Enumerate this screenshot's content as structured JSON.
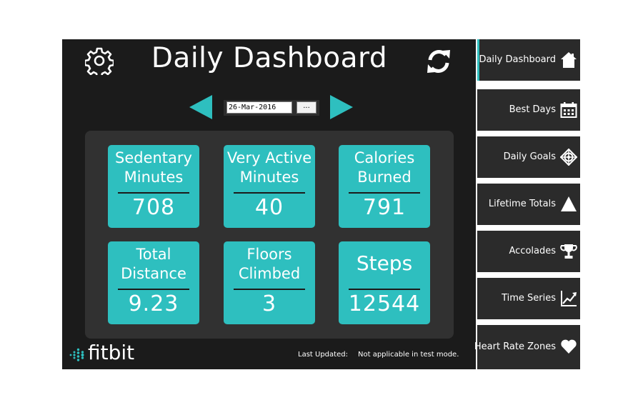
{
  "header": {
    "title": "Daily Dashboard",
    "settings_icon": "gear-icon",
    "refresh_icon": "refresh-icon"
  },
  "date_picker": {
    "value": "26-Mar-2016",
    "button_label": "..."
  },
  "tiles": [
    {
      "label": "Sedentary Minutes",
      "value": "708"
    },
    {
      "label": "Very Active Minutes",
      "value": "40"
    },
    {
      "label": "Calories Burned",
      "value": "791"
    },
    {
      "label": "Total Distance",
      "value": "9.23"
    },
    {
      "label": "Floors Climbed",
      "value": "3"
    },
    {
      "label": "Steps",
      "value": "12544"
    }
  ],
  "footer": {
    "brand": "fitbit",
    "last_updated_label": "Last Updated:",
    "last_updated_value": "Not applicable in test mode."
  },
  "nav": {
    "items": [
      {
        "label": "Daily Dashboard",
        "icon": "home-icon",
        "active": true
      },
      {
        "label": "Best Days",
        "icon": "calendar-icon"
      },
      {
        "label": "Daily Goals",
        "icon": "target-icon"
      },
      {
        "label": "Lifetime Totals",
        "icon": "triangle-icon"
      },
      {
        "label": "Accolades",
        "icon": "trophy-icon"
      },
      {
        "label": "Time Series",
        "icon": "line-chart-icon"
      },
      {
        "label": "Heart Rate Zones",
        "icon": "heart-icon"
      }
    ]
  },
  "colors": {
    "accent": "#2ebfbf",
    "background": "#1b1b1b",
    "panel": "#313131",
    "nav_item": "#2b2b2b"
  }
}
